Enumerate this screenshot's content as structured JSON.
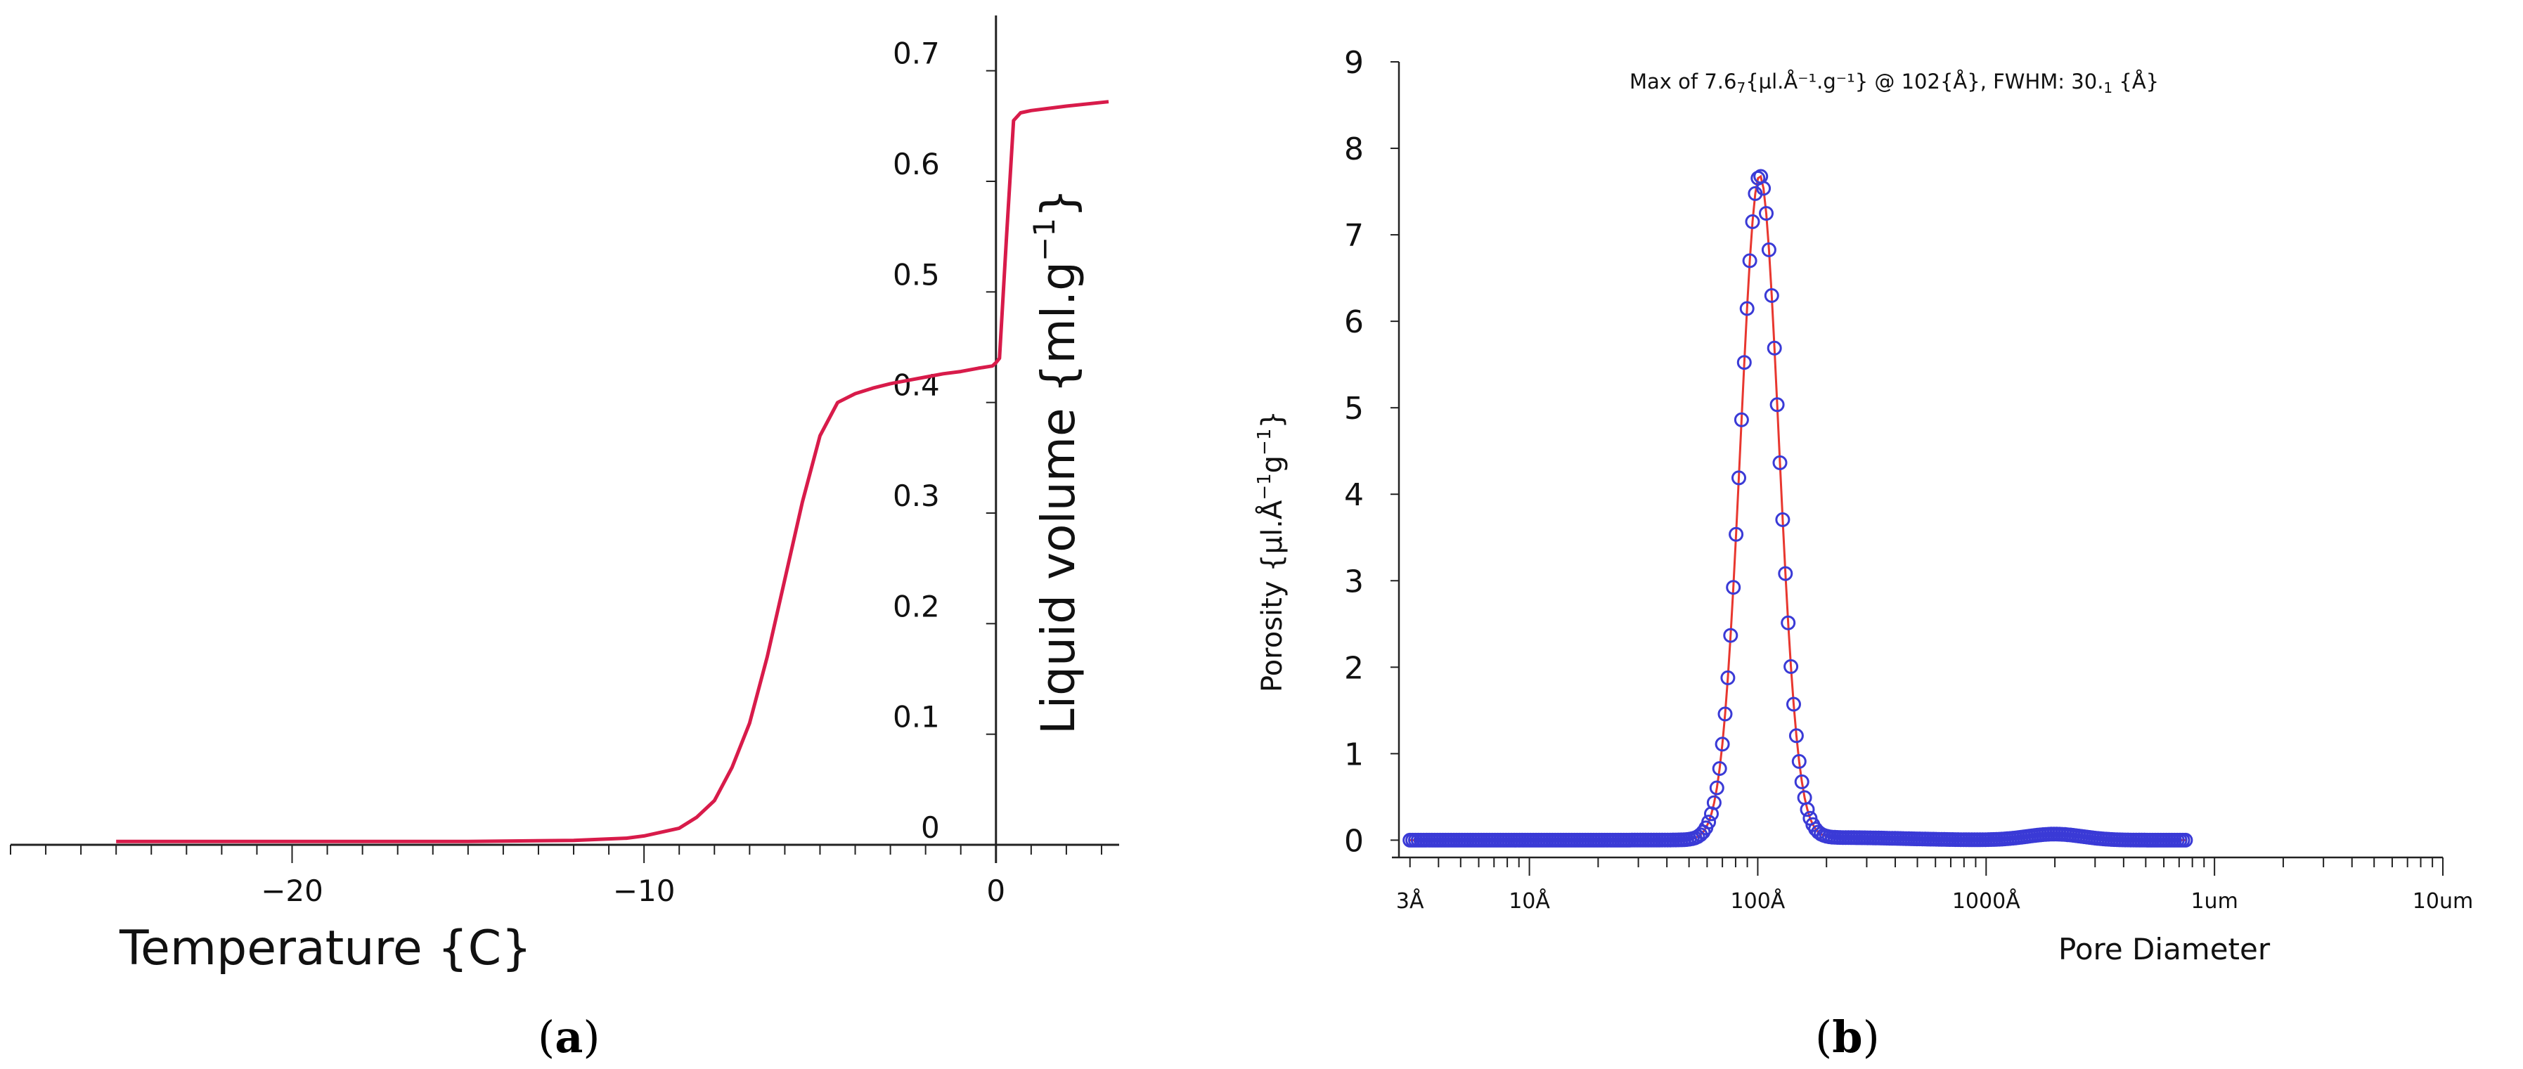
{
  "chart_data": [
    {
      "type": "line",
      "panel_label": "a",
      "xlabel": "Temperature  {C}",
      "ylabel": "Liquid volume  {ml.g",
      "ylabel_sup": "−1",
      "ylabel_close": "}",
      "xlim": [
        -28,
        3.5
      ],
      "ylim": [
        0,
        0.75
      ],
      "x_ticks": [
        {
          "value": -20,
          "label": "−20"
        },
        {
          "value": -10,
          "label": "−10"
        },
        {
          "value": 0,
          "label": "0"
        }
      ],
      "y_ticks": [
        {
          "value": 0,
          "label": "0"
        },
        {
          "value": 0.1,
          "label": "0.1"
        },
        {
          "value": 0.2,
          "label": "0.2"
        },
        {
          "value": 0.3,
          "label": "0.3"
        },
        {
          "value": 0.4,
          "label": "0.4"
        },
        {
          "value": 0.5,
          "label": "0.5"
        },
        {
          "value": 0.6,
          "label": "0.6"
        },
        {
          "value": 0.7,
          "label": "0.7"
        }
      ],
      "grid": false,
      "series": [
        {
          "name": "liquid volume",
          "color": "#d81b4a",
          "x": [
            -25,
            -20,
            -15,
            -12,
            -10.5,
            -10,
            -9,
            -8.5,
            -8,
            -7.5,
            -7,
            -6.5,
            -6,
            -5.5,
            -5,
            -4.5,
            -4,
            -3.5,
            -3,
            -2.5,
            -2,
            -1.5,
            -1,
            -0.5,
            -0.1,
            0,
            0.1,
            0.3,
            0.5,
            0.7,
            1,
            2,
            3.2
          ],
          "y": [
            0.003,
            0.003,
            0.003,
            0.004,
            0.006,
            0.008,
            0.015,
            0.025,
            0.04,
            0.07,
            0.11,
            0.17,
            0.24,
            0.31,
            0.37,
            0.4,
            0.408,
            0.413,
            0.417,
            0.42,
            0.423,
            0.426,
            0.428,
            0.431,
            0.433,
            0.436,
            0.44,
            0.55,
            0.655,
            0.662,
            0.664,
            0.668,
            0.672
          ]
        }
      ]
    },
    {
      "type": "scatter",
      "panel_label": "b",
      "annotation_prefix": "Max  of   7.6",
      "annotation_sub": "7",
      "annotation_suffix": "{µl.Å⁻¹.g⁻¹}  @    102{Å},  FWHM:   30.",
      "annotation_sub2": "1",
      "annotation_end": " {Å}",
      "xlabel": "Pore Diameter",
      "ylabel": "Porosity  {µl.Å",
      "ylabel_sup1": "−1",
      "ylabel_mid": "g",
      "ylabel_sup2": "−1",
      "ylabel_close": "}",
      "x_scale": "log",
      "xlim": [
        2.5,
        100000
      ],
      "ylim": [
        -0.2,
        9
      ],
      "x_ticks": [
        {
          "value": 3,
          "label": "3Å"
        },
        {
          "value": 10,
          "label": "10Å"
        },
        {
          "value": 100,
          "label": "100Å"
        },
        {
          "value": 1000,
          "label": "1000Å"
        },
        {
          "value": 10000,
          "label": "1um"
        },
        {
          "value": 100000,
          "label": "10um"
        }
      ],
      "y_ticks": [
        {
          "value": 0,
          "label": "0"
        },
        {
          "value": 1,
          "label": "1"
        },
        {
          "value": 2,
          "label": "2"
        },
        {
          "value": 3,
          "label": "3"
        },
        {
          "value": 4,
          "label": "4"
        },
        {
          "value": 5,
          "label": "5"
        },
        {
          "value": 6,
          "label": "6"
        },
        {
          "value": 7,
          "label": "7"
        },
        {
          "value": 8,
          "label": "8"
        },
        {
          "value": 9,
          "label": "9"
        }
      ],
      "grid": false,
      "peak": {
        "x": 102,
        "y": 7.67,
        "fwhm": 30.1
      },
      "series": [
        {
          "name": "fit",
          "color": "#e8372f",
          "marker_color": "#3a3ad6"
        }
      ],
      "tail": [
        {
          "x": 200,
          "y": 0.06
        },
        {
          "x": 400,
          "y": 0.03
        },
        {
          "x": 800,
          "y": 0.02
        },
        {
          "x": 1500,
          "y": 0.05
        },
        {
          "x": 2000,
          "y": 0.09
        },
        {
          "x": 3000,
          "y": 0.06
        },
        {
          "x": 5000,
          "y": 0.03
        },
        {
          "x": 7000,
          "y": 0.02
        }
      ]
    }
  ]
}
